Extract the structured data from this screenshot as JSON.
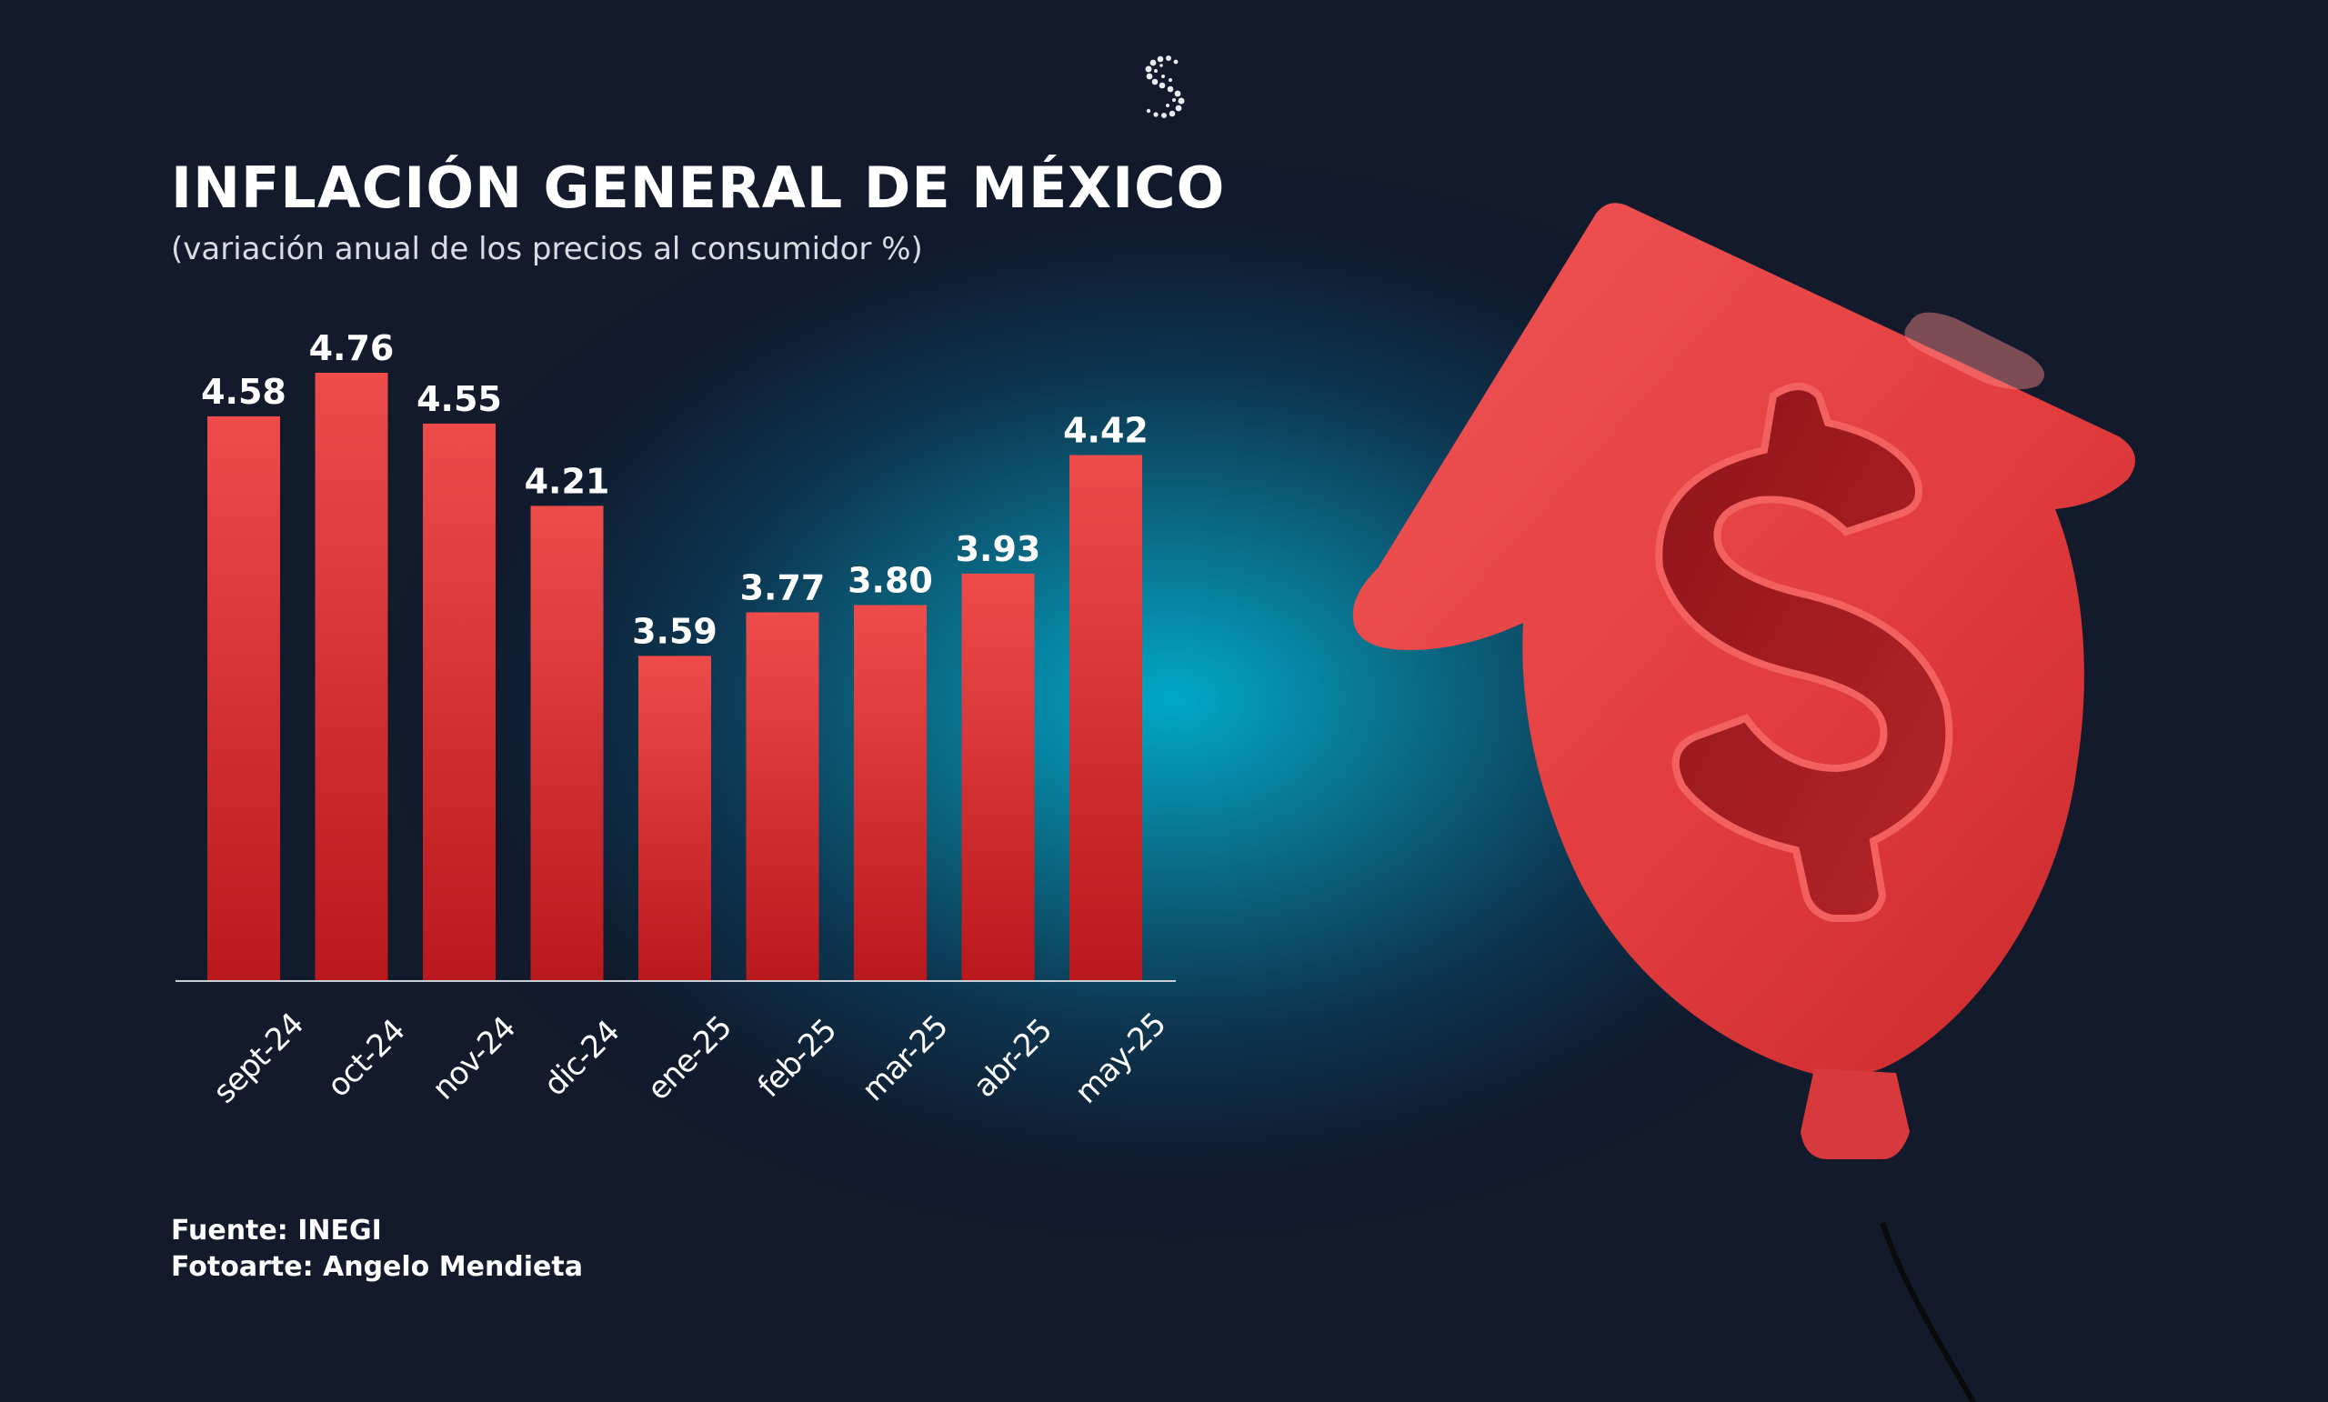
{
  "header": {
    "title": "INFLACIÓN GENERAL DE MÉXICO",
    "subtitle": "(variación anual de los precios al consumidor %)"
  },
  "footer": {
    "source": "Fuente: INEGI",
    "credit": "Fotoarte: Angelo Mendieta"
  },
  "logo": {
    "icon": "s-dots-logo-icon"
  },
  "illustration": {
    "icon": "dollar-balloon-arrow-icon"
  },
  "colors": {
    "bar": "#d42a2e",
    "bar_light": "#ee4b4b",
    "background": "#121a2b",
    "glow": "#00a9c8",
    "text": "#ffffff"
  },
  "chart_data": {
    "type": "bar",
    "title": "INFLACIÓN GENERAL DE MÉXICO",
    "subtitle": "(variación anual de los precios al consumidor %)",
    "xlabel": "",
    "ylabel": "",
    "categories": [
      "sept-24",
      "oct-24",
      "nov-24",
      "dic-24",
      "ene-25",
      "feb-25",
      "mar-25",
      "abr-25",
      "may-25"
    ],
    "values": [
      4.58,
      4.76,
      4.55,
      4.21,
      3.59,
      3.77,
      3.8,
      3.93,
      4.42
    ],
    "value_labels": [
      "4.58",
      "4.76",
      "4.55",
      "4.21",
      "3.59",
      "3.77",
      "3.80",
      "3.93",
      "4.42"
    ],
    "ylim": [
      2.25,
      4.76
    ],
    "grid": false,
    "legend": "none"
  }
}
